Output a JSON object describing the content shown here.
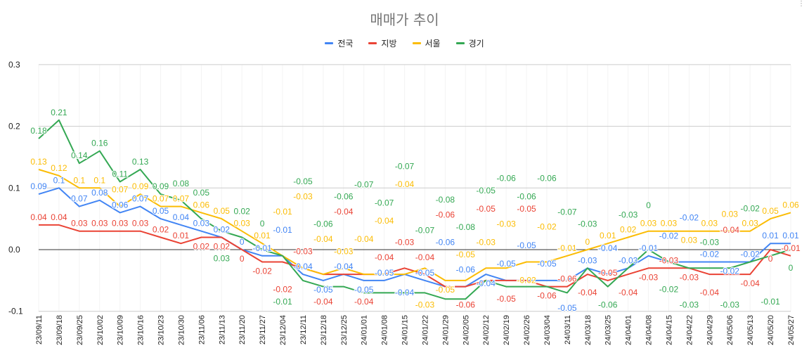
{
  "chart_data": {
    "type": "line",
    "title": "매매가 추이",
    "xlabel": "",
    "ylabel": "",
    "ylim": [
      -0.1,
      0.3
    ],
    "yticks": [
      "0.3",
      "0.2",
      "0.1",
      "0.0",
      "-0.1"
    ],
    "grid": true,
    "legend_position": "top",
    "categories": [
      "23/09/11",
      "23/09/18",
      "23/09/25",
      "23/10/02",
      "23/10/09",
      "23/10/16",
      "23/10/23",
      "23/10/30",
      "23/11/06",
      "23/11/13",
      "23/11/20",
      "23/11/27",
      "23/12/04",
      "23/12/11",
      "23/12/18",
      "23/12/25",
      "24/01/01",
      "24/01/08",
      "24/01/15",
      "24/01/22",
      "24/01/29",
      "24/02/05",
      "24/02/12",
      "24/02/19",
      "24/02/26",
      "24/03/04",
      "24/03/11",
      "24/03/18",
      "24/03/25",
      "24/04/01",
      "24/04/08",
      "24/04/15",
      "24/04/22",
      "24/04/29",
      "24/05/06",
      "24/05/13",
      "24/05/20",
      "24/05/27"
    ],
    "series": [
      {
        "name": "전국",
        "color": "#4285f4",
        "values": [
          0.09,
          0.1,
          0.07,
          0.08,
          0.06,
          0.07,
          0.05,
          0.04,
          0.03,
          0.02,
          0,
          -0.01,
          -0.01,
          -0.04,
          -0.05,
          -0.04,
          -0.05,
          -0.05,
          -0.04,
          -0.05,
          -0.06,
          -0.06,
          -0.04,
          -0.05,
          -0.05,
          -0.05,
          -0.05,
          -0.03,
          -0.04,
          -0.03,
          -0.01,
          -0.02,
          -0.02,
          -0.02,
          -0.02,
          -0.02,
          0.01,
          0.01
        ]
      },
      {
        "name": "지방",
        "color": "#ea4335",
        "values": [
          0.04,
          0.04,
          0.03,
          0.03,
          0.03,
          0.03,
          0.02,
          0.01,
          0.02,
          0.02,
          0,
          -0.02,
          -0.02,
          -0.03,
          -0.04,
          -0.04,
          -0.04,
          -0.04,
          -0.03,
          -0.04,
          -0.06,
          -0.06,
          -0.05,
          -0.05,
          -0.05,
          -0.06,
          -0.06,
          -0.04,
          -0.05,
          -0.04,
          -0.03,
          -0.03,
          -0.03,
          -0.04,
          -0.04,
          -0.04,
          0,
          -0.01
        ]
      },
      {
        "name": "서울",
        "color": "#fbbc04",
        "values": [
          0.13,
          0.12,
          0.1,
          0.1,
          0.07,
          0.09,
          0.07,
          0.07,
          0.06,
          0.05,
          0.03,
          0.01,
          -0.01,
          -0.03,
          -0.04,
          -0.03,
          -0.04,
          -0.04,
          -0.04,
          -0.03,
          -0.05,
          -0.05,
          -0.03,
          -0.03,
          -0.02,
          -0.02,
          -0.01,
          0,
          0.01,
          0.02,
          0.03,
          0.03,
          0.03,
          0.03,
          0.03,
          0.03,
          0.05,
          0.06
        ]
      },
      {
        "name": "경기",
        "color": "#34a853",
        "values": [
          0.18,
          0.21,
          0.14,
          0.16,
          0.11,
          0.13,
          0.09,
          0.08,
          0.05,
          0.03,
          0.02,
          0,
          -0.01,
          -0.05,
          -0.06,
          -0.06,
          -0.07,
          -0.07,
          -0.07,
          -0.07,
          -0.08,
          -0.08,
          -0.05,
          -0.06,
          -0.06,
          -0.06,
          -0.07,
          -0.03,
          -0.06,
          -0.03,
          0,
          -0.02,
          -0.03,
          -0.03,
          -0.03,
          -0.02,
          -0.01,
          0
        ]
      }
    ]
  }
}
